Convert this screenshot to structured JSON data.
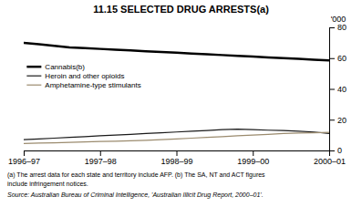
{
  "chart_data": {
    "type": "line",
    "title": "11.15   SELECTED DRUG ARRESTS(a)",
    "ylabel": "'000",
    "x": [
      0,
      0.2,
      0.4,
      0.6,
      0.8,
      1,
      1.2,
      1.4,
      1.6,
      1.8,
      2,
      2.2,
      2.4,
      2.6,
      2.8,
      3,
      3.2,
      3.4,
      3.6,
      3.8,
      4
    ],
    "xlim": [
      0,
      4
    ],
    "xticks": [
      {
        "value": 0,
        "label": "1996–97"
      },
      {
        "value": 1,
        "label": "1997–98"
      },
      {
        "value": 2,
        "label": "1998–99"
      },
      {
        "value": 3,
        "label": "1999–00"
      },
      {
        "value": 4,
        "label": "2000–01"
      }
    ],
    "series": [
      {
        "name": "Cannabis(b)",
        "color": "#000000",
        "values": [
          70,
          69,
          68,
          67,
          66.5,
          66,
          65.5,
          65,
          64.5,
          64,
          63.5,
          63,
          62.5,
          62,
          61.5,
          61,
          60.5,
          60,
          59.5,
          59,
          58.5
        ]
      },
      {
        "name": "Heroin and other opioids",
        "color": "#1a1a1a",
        "values": [
          7,
          7.5,
          8,
          8.5,
          9,
          9.5,
          10,
          10.5,
          11,
          11.5,
          12,
          12.5,
          13,
          13.5,
          13.8,
          13.5,
          13.2,
          13,
          12.5,
          12,
          11
        ]
      },
      {
        "name": "Amphetamine-type stimulants",
        "color": "#9b8b6e",
        "values": [
          4.5,
          4.8,
          5,
          5.3,
          5.5,
          5.8,
          6,
          6.3,
          6.6,
          7,
          7.5,
          8,
          8.5,
          9,
          9.5,
          10,
          10.5,
          11,
          11.3,
          11.5,
          11.8
        ]
      }
    ],
    "ylim": [
      0,
      80
    ],
    "yticks": [
      0,
      20,
      40,
      60,
      80
    ],
    "grid": false,
    "legend": "upper left",
    "annotations": [
      "(a) The arrest data for each state and territory include AFP.  (b) The SA, NT and ACT figures",
      "include infringement notices.",
      "Source:  Australian Bureau of Criminal Intelligence, 'Australian Illicit Drug Report,  2000–01'."
    ]
  }
}
